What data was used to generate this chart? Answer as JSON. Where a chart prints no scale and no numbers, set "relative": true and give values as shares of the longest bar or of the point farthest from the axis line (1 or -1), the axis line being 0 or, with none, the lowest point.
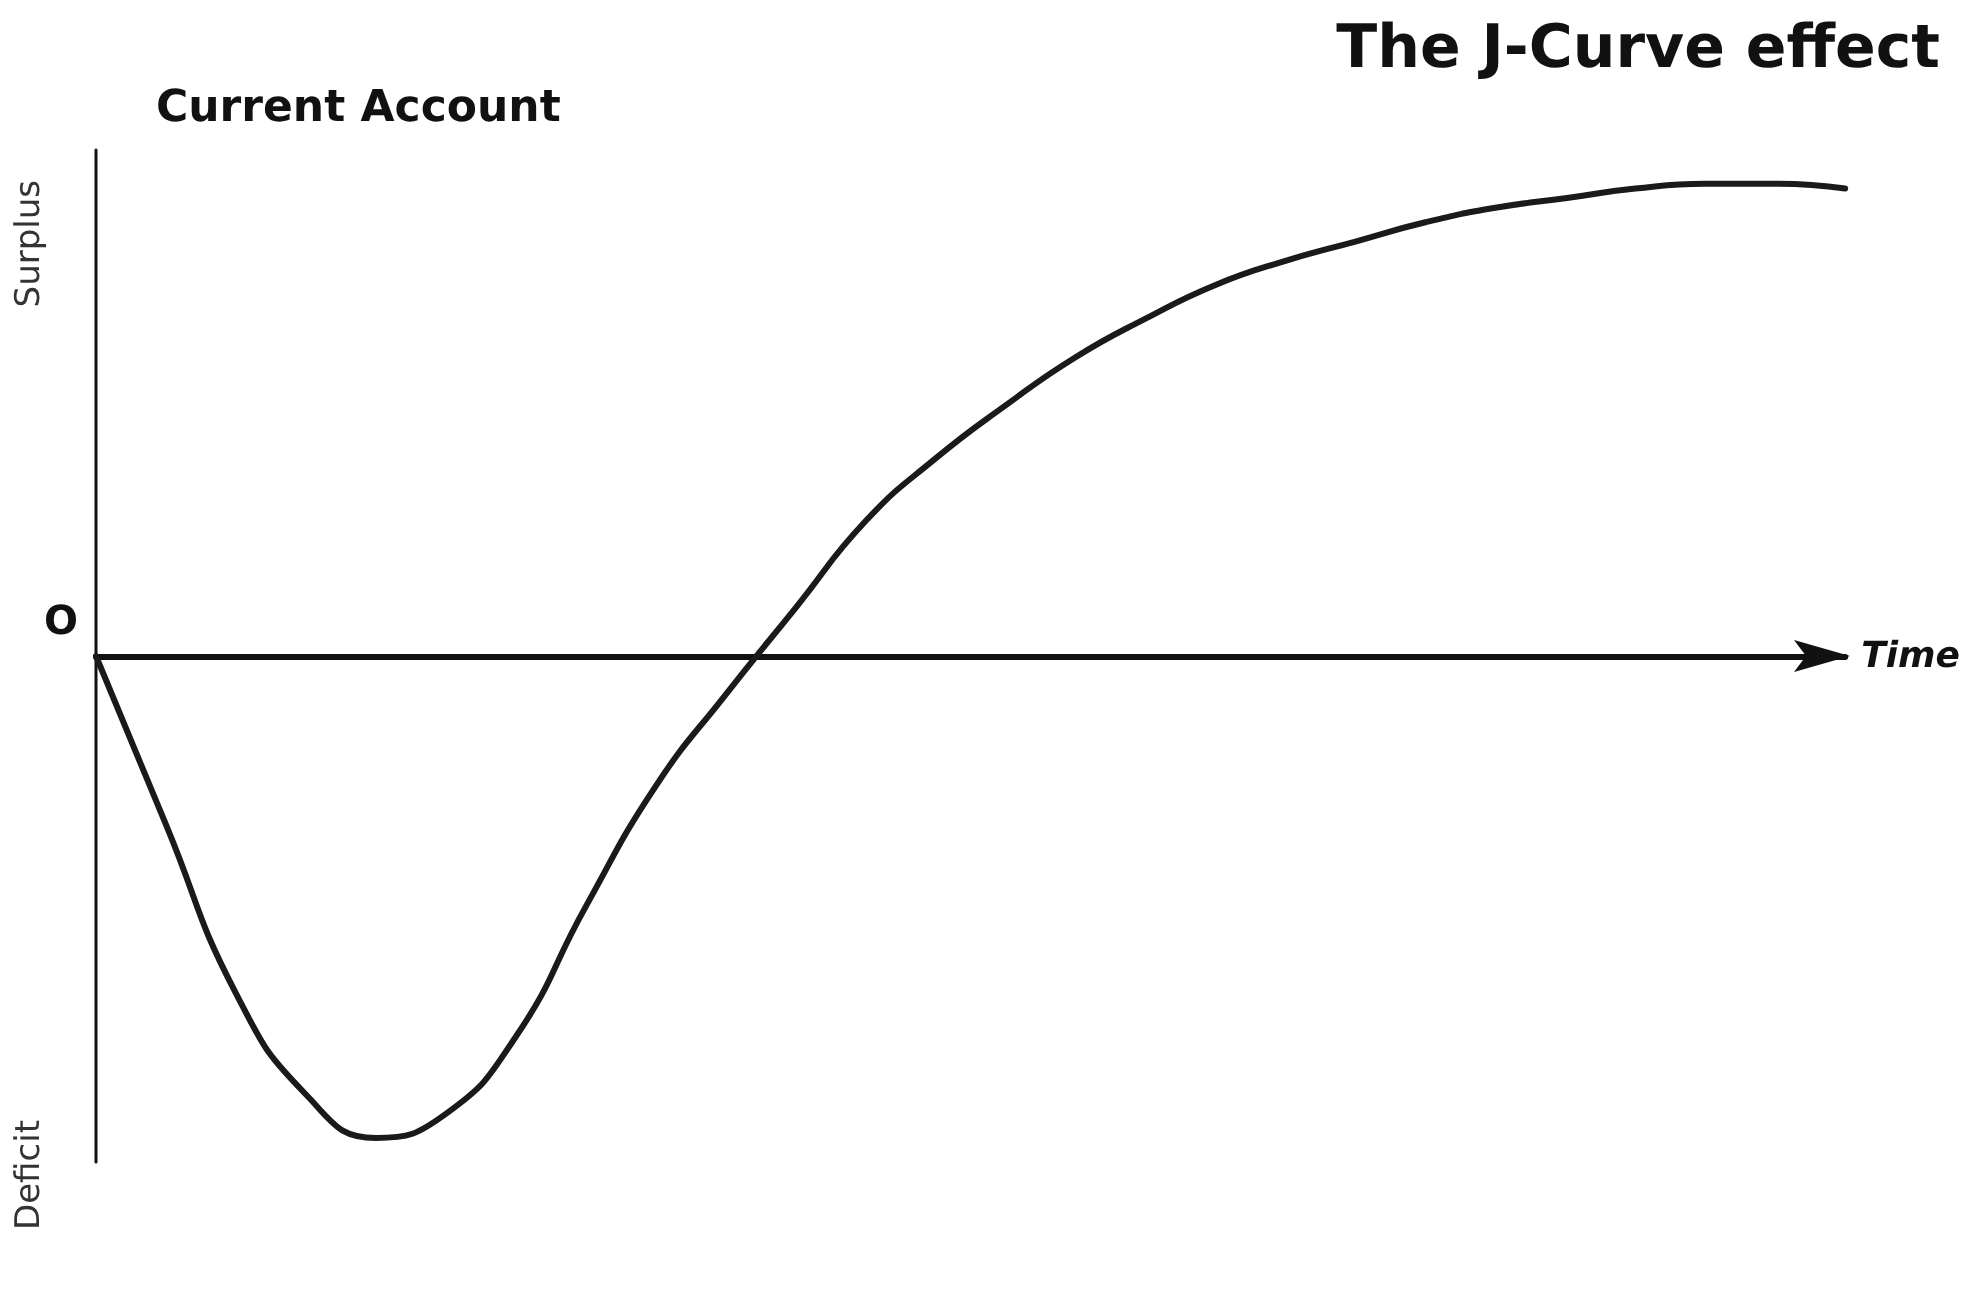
{
  "chart_data": {
    "type": "line",
    "title": "The J-Curve effect",
    "ylabel": "Current Account",
    "xlabel": "Time",
    "relative": true,
    "grid": false,
    "marker": "none",
    "line_style": "solid",
    "annotations": [
      "Surplus",
      "O",
      "Deficit"
    ],
    "categories": [
      null,
      null,
      null,
      null,
      null,
      null,
      null,
      null,
      null,
      null,
      null,
      null,
      null,
      null,
      null,
      null,
      null,
      null,
      null,
      null,
      null,
      null,
      null,
      null,
      null,
      null
    ],
    "series": [
      {
        "color": "#1a1a1a",
        "values": [
          0,
          -0.35,
          -0.7,
          -0.91,
          -1,
          -0.95,
          -0.79,
          -0.52,
          -0.27,
          -0.08,
          0.1,
          0.28,
          0.41,
          0.52,
          0.62,
          0.7,
          0.77,
          0.82,
          0.86,
          0.9,
          0.93,
          0.95,
          0.97,
          0.98,
          0.98,
          0.97
        ]
      }
    ]
  }
}
